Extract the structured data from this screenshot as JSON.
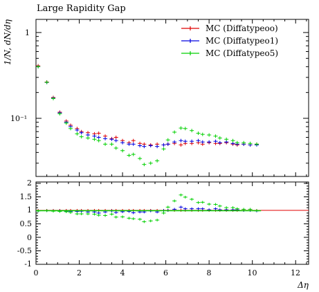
{
  "chart_data": {
    "type": "scatter",
    "title": "Large Rapidity Gap",
    "xlabel": "Δη",
    "ylabel": "1/N, dN/dη",
    "xlim": [
      0,
      12.6
    ],
    "ylim": [
      0.024,
      1.6
    ],
    "y_scale": "log",
    "ratio_ylim": [
      -1,
      2
    ],
    "grid": false,
    "legend_position": "top-right",
    "x_ticks": [
      "0",
      "2",
      "4",
      "6",
      "8",
      "10",
      "12"
    ],
    "y_ticks_main": [
      "1",
      "10⁻¹"
    ],
    "y_ticks_ratio": [
      "2",
      "1.5",
      "1",
      "0.5",
      "0",
      "-0.5",
      "-1"
    ],
    "series": [
      {
        "name": "MC (Diffatypeoo)",
        "color": "#e00000",
        "x": [
          0.1,
          0.5,
          0.8,
          1.1,
          1.4,
          1.6,
          1.9,
          2.1,
          2.4,
          2.7,
          2.9,
          3.2,
          3.5,
          3.7,
          4.0,
          4.3,
          4.5,
          4.8,
          5.0,
          5.3,
          5.6,
          5.9,
          6.1,
          6.4,
          6.7,
          6.9,
          7.2,
          7.5,
          7.7,
          8.0,
          8.3,
          8.5,
          8.8,
          9.1,
          9.3,
          9.6,
          9.9,
          10.2
        ],
        "y": [
          0.41,
          0.265,
          0.175,
          0.118,
          0.093,
          0.083,
          0.076,
          0.07,
          0.068,
          0.066,
          0.067,
          0.062,
          0.058,
          0.06,
          0.055,
          0.052,
          0.055,
          0.051,
          0.05,
          0.049,
          0.05,
          0.049,
          0.05,
          0.051,
          0.049,
          0.051,
          0.051,
          0.052,
          0.05,
          0.052,
          0.051,
          0.051,
          0.052,
          0.05,
          0.049,
          0.05,
          0.049,
          0.05
        ],
        "ratio": [
          1,
          1,
          1,
          1,
          1,
          1,
          1,
          1,
          1,
          1,
          1,
          1,
          1,
          1,
          1,
          1,
          1,
          1,
          1,
          1,
          1,
          1,
          1,
          1,
          1,
          1,
          1,
          1,
          1,
          1,
          1,
          1,
          1,
          1,
          1,
          1,
          1,
          1
        ]
      },
      {
        "name": "MC (Diffatypeo1)",
        "color": "#0000e0",
        "x": [
          0.1,
          0.5,
          0.8,
          1.1,
          1.4,
          1.6,
          1.9,
          2.1,
          2.4,
          2.7,
          2.9,
          3.2,
          3.5,
          3.7,
          4.0,
          4.3,
          4.5,
          4.8,
          5.0,
          5.3,
          5.6,
          5.9,
          6.1,
          6.4,
          6.7,
          6.9,
          7.2,
          7.5,
          7.7,
          8.0,
          8.3,
          8.5,
          8.8,
          9.1,
          9.3,
          9.6,
          9.9,
          10.2
        ],
        "y": [
          0.4,
          0.262,
          0.172,
          0.116,
          0.09,
          0.08,
          0.073,
          0.068,
          0.064,
          0.062,
          0.06,
          0.058,
          0.057,
          0.055,
          0.052,
          0.05,
          0.05,
          0.048,
          0.047,
          0.048,
          0.047,
          0.049,
          0.05,
          0.053,
          0.055,
          0.054,
          0.054,
          0.055,
          0.053,
          0.053,
          0.054,
          0.052,
          0.053,
          0.051,
          0.05,
          0.05,
          0.049,
          0.049
        ],
        "ratio": [
          0.98,
          0.99,
          0.98,
          0.98,
          0.97,
          0.96,
          0.96,
          0.97,
          0.94,
          0.94,
          0.9,
          0.94,
          0.98,
          0.92,
          0.95,
          0.96,
          0.91,
          0.94,
          0.94,
          0.98,
          0.94,
          1.0,
          1.0,
          1.04,
          1.12,
          1.06,
          1.06,
          1.06,
          1.06,
          1.02,
          1.06,
          1.02,
          1.02,
          1.02,
          1.02,
          1.0,
          1.0,
          0.98
        ]
      },
      {
        "name": "MC (Diffatypeo5)",
        "color": "#00d000",
        "x": [
          0.1,
          0.5,
          0.8,
          1.1,
          1.4,
          1.6,
          1.9,
          2.1,
          2.4,
          2.7,
          2.9,
          3.2,
          3.5,
          3.7,
          4.0,
          4.3,
          4.5,
          4.8,
          5.0,
          5.3,
          5.6,
          5.9,
          6.1,
          6.4,
          6.7,
          6.9,
          7.2,
          7.5,
          7.7,
          8.0,
          8.3,
          8.5,
          8.8,
          9.1,
          9.3,
          9.6,
          9.9,
          10.2
        ],
        "y": [
          0.4,
          0.263,
          0.17,
          0.113,
          0.088,
          0.076,
          0.066,
          0.061,
          0.059,
          0.057,
          0.055,
          0.05,
          0.05,
          0.045,
          0.042,
          0.037,
          0.038,
          0.034,
          0.029,
          0.03,
          0.032,
          0.044,
          0.056,
          0.069,
          0.077,
          0.076,
          0.072,
          0.067,
          0.065,
          0.064,
          0.062,
          0.059,
          0.057,
          0.055,
          0.052,
          0.052,
          0.051,
          0.05
        ],
        "ratio": [
          0.98,
          0.99,
          0.97,
          0.96,
          0.95,
          0.92,
          0.87,
          0.87,
          0.87,
          0.86,
          0.82,
          0.81,
          0.86,
          0.75,
          0.76,
          0.71,
          0.69,
          0.67,
          0.58,
          0.61,
          0.64,
          0.9,
          1.12,
          1.35,
          1.57,
          1.49,
          1.41,
          1.29,
          1.3,
          1.23,
          1.22,
          1.16,
          1.1,
          1.1,
          1.06,
          1.04,
          1.04,
          1.0
        ]
      }
    ]
  }
}
